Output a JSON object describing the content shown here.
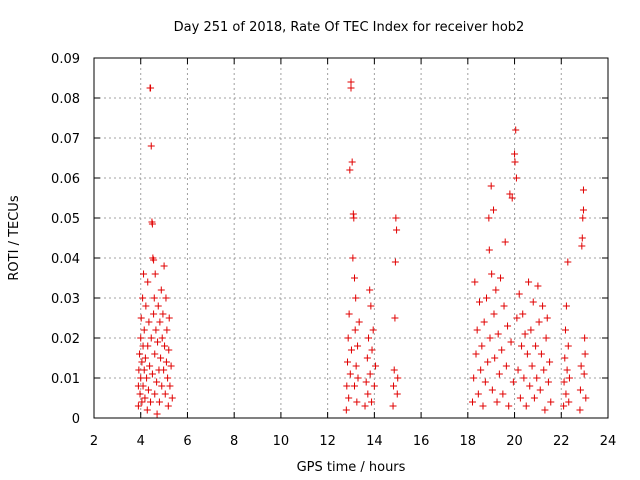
{
  "chart_data": {
    "type": "scatter",
    "title": "Day 251 of 2018, Rate Of TEC Index for receiver hob2",
    "xlabel": "GPS time / hours",
    "ylabel": "ROTI / TECUs",
    "xlim": [
      2,
      24
    ],
    "ylim": [
      0,
      0.09
    ],
    "grid": true,
    "marker": "plus",
    "color": "#e00000",
    "x_ticks": [
      2,
      4,
      6,
      8,
      10,
      12,
      14,
      16,
      18,
      20,
      22,
      24
    ],
    "y_ticks": [
      0,
      0.01,
      0.02,
      0.03,
      0.04,
      0.05,
      0.06,
      0.07,
      0.08,
      0.09
    ],
    "x_tick_labels": [
      "2",
      "4",
      "6",
      "8",
      "10",
      "12",
      "14",
      "16",
      "18",
      "20",
      "22",
      "24"
    ],
    "y_tick_labels": [
      "0",
      "0.01",
      "0.02",
      "0.03",
      "0.04",
      "0.05",
      "0.06",
      "0.07",
      "0.08",
      "0.09"
    ],
    "series": [
      {
        "name": "hob2",
        "points": [
          [
            3.9,
            0.003
          ],
          [
            3.9,
            0.008
          ],
          [
            3.92,
            0.012
          ],
          [
            3.95,
            0.016
          ],
          [
            3.97,
            0.006
          ],
          [
            4.0,
            0.02
          ],
          [
            4.0,
            0.01
          ],
          [
            4.02,
            0.025
          ],
          [
            4.05,
            0.014
          ],
          [
            4.05,
            0.004
          ],
          [
            4.08,
            0.03
          ],
          [
            4.1,
            0.018
          ],
          [
            4.1,
            0.008
          ],
          [
            4.12,
            0.036
          ],
          [
            4.15,
            0.012
          ],
          [
            4.15,
            0.022
          ],
          [
            4.18,
            0.005
          ],
          [
            4.2,
            0.015
          ],
          [
            4.22,
            0.028
          ],
          [
            4.25,
            0.01
          ],
          [
            4.28,
            0.002
          ],
          [
            4.3,
            0.018
          ],
          [
            4.3,
            0.034
          ],
          [
            4.33,
            0.007
          ],
          [
            4.35,
            0.024
          ],
          [
            4.38,
            0.013
          ],
          [
            4.4,
            0.0825
          ],
          [
            4.42,
            0.0825
          ],
          [
            4.42,
            0.004
          ],
          [
            4.45,
            0.068
          ],
          [
            4.45,
            0.02
          ],
          [
            4.48,
            0.049
          ],
          [
            4.5,
            0.0485
          ],
          [
            4.5,
            0.011
          ],
          [
            4.52,
            0.04
          ],
          [
            4.55,
            0.0395
          ],
          [
            4.55,
            0.026
          ],
          [
            4.58,
            0.03
          ],
          [
            4.6,
            0.016
          ],
          [
            4.6,
            0.006
          ],
          [
            4.62,
            0.036
          ],
          [
            4.65,
            0.022
          ],
          [
            4.68,
            0.009
          ],
          [
            4.7,
            0.001
          ],
          [
            4.72,
            0.019
          ],
          [
            4.75,
            0.028
          ],
          [
            4.78,
            0.012
          ],
          [
            4.8,
            0.004
          ],
          [
            4.82,
            0.024
          ],
          [
            4.85,
            0.015
          ],
          [
            4.88,
            0.032
          ],
          [
            4.9,
            0.008
          ],
          [
            4.92,
            0.02
          ],
          [
            4.95,
            0.026
          ],
          [
            4.98,
            0.012
          ],
          [
            5.0,
            0.038
          ],
          [
            5.02,
            0.018
          ],
          [
            5.05,
            0.006
          ],
          [
            5.08,
            0.03
          ],
          [
            5.1,
            0.014
          ],
          [
            5.12,
            0.022
          ],
          [
            5.15,
            0.01
          ],
          [
            5.18,
            0.003
          ],
          [
            5.2,
            0.017
          ],
          [
            5.22,
            0.025
          ],
          [
            5.25,
            0.008
          ],
          [
            5.3,
            0.013
          ],
          [
            5.35,
            0.005
          ],
          [
            12.8,
            0.002
          ],
          [
            12.82,
            0.008
          ],
          [
            12.85,
            0.014
          ],
          [
            12.88,
            0.02
          ],
          [
            12.9,
            0.005
          ],
          [
            12.92,
            0.026
          ],
          [
            12.95,
            0.062
          ],
          [
            12.97,
            0.011
          ],
          [
            13.0,
            0.084
          ],
          [
            13.0,
            0.0825
          ],
          [
            13.02,
            0.017
          ],
          [
            13.05,
            0.064
          ],
          [
            13.08,
            0.04
          ],
          [
            13.1,
            0.051
          ],
          [
            13.12,
            0.05
          ],
          [
            13.15,
            0.035
          ],
          [
            13.15,
            0.008
          ],
          [
            13.18,
            0.022
          ],
          [
            13.2,
            0.03
          ],
          [
            13.22,
            0.013
          ],
          [
            13.25,
            0.004
          ],
          [
            13.28,
            0.018
          ],
          [
            13.3,
            0.01
          ],
          [
            13.35,
            0.024
          ],
          [
            13.6,
            0.003
          ],
          [
            13.65,
            0.009
          ],
          [
            13.7,
            0.015
          ],
          [
            13.72,
            0.006
          ],
          [
            13.75,
            0.02
          ],
          [
            13.8,
            0.032
          ],
          [
            13.82,
            0.011
          ],
          [
            13.85,
            0.028
          ],
          [
            13.88,
            0.004
          ],
          [
            13.9,
            0.017
          ],
          [
            13.95,
            0.022
          ],
          [
            14.0,
            0.008
          ],
          [
            14.05,
            0.013
          ],
          [
            14.8,
            0.003
          ],
          [
            14.82,
            0.008
          ],
          [
            14.85,
            0.012
          ],
          [
            14.88,
            0.025
          ],
          [
            14.9,
            0.039
          ],
          [
            14.92,
            0.05
          ],
          [
            14.95,
            0.047
          ],
          [
            14.98,
            0.006
          ],
          [
            15.0,
            0.01
          ],
          [
            18.2,
            0.004
          ],
          [
            18.25,
            0.01
          ],
          [
            18.3,
            0.034
          ],
          [
            18.35,
            0.016
          ],
          [
            18.4,
            0.022
          ],
          [
            18.45,
            0.006
          ],
          [
            18.5,
            0.029
          ],
          [
            18.55,
            0.012
          ],
          [
            18.6,
            0.018
          ],
          [
            18.65,
            0.003
          ],
          [
            18.7,
            0.024
          ],
          [
            18.75,
            0.009
          ],
          [
            18.8,
            0.03
          ],
          [
            18.85,
            0.014
          ],
          [
            18.9,
            0.05
          ],
          [
            18.92,
            0.042
          ],
          [
            18.95,
            0.02
          ],
          [
            19.0,
            0.058
          ],
          [
            19.02,
            0.036
          ],
          [
            19.05,
            0.007
          ],
          [
            19.1,
            0.052
          ],
          [
            19.12,
            0.026
          ],
          [
            19.15,
            0.015
          ],
          [
            19.2,
            0.032
          ],
          [
            19.25,
            0.004
          ],
          [
            19.3,
            0.021
          ],
          [
            19.35,
            0.011
          ],
          [
            19.4,
            0.035
          ],
          [
            19.45,
            0.017
          ],
          [
            19.5,
            0.006
          ],
          [
            19.55,
            0.028
          ],
          [
            19.6,
            0.044
          ],
          [
            19.65,
            0.013
          ],
          [
            19.7,
            0.023
          ],
          [
            19.75,
            0.003
          ],
          [
            19.8,
            0.056
          ],
          [
            19.85,
            0.019
          ],
          [
            19.9,
            0.055
          ],
          [
            19.95,
            0.009
          ],
          [
            20.0,
            0.066
          ],
          [
            20.02,
            0.064
          ],
          [
            20.05,
            0.072
          ],
          [
            20.08,
            0.06
          ],
          [
            20.1,
            0.025
          ],
          [
            20.15,
            0.012
          ],
          [
            20.2,
            0.031
          ],
          [
            20.25,
            0.005
          ],
          [
            20.3,
            0.018
          ],
          [
            20.35,
            0.026
          ],
          [
            20.4,
            0.01
          ],
          [
            20.45,
            0.021
          ],
          [
            20.5,
            0.003
          ],
          [
            20.55,
            0.016
          ],
          [
            20.6,
            0.034
          ],
          [
            20.65,
            0.008
          ],
          [
            20.7,
            0.022
          ],
          [
            20.75,
            0.013
          ],
          [
            20.8,
            0.029
          ],
          [
            20.85,
            0.005
          ],
          [
            20.9,
            0.018
          ],
          [
            20.95,
            0.01
          ],
          [
            21.0,
            0.033
          ],
          [
            21.05,
            0.024
          ],
          [
            21.1,
            0.007
          ],
          [
            21.15,
            0.016
          ],
          [
            21.2,
            0.028
          ],
          [
            21.25,
            0.012
          ],
          [
            21.3,
            0.002
          ],
          [
            21.35,
            0.02
          ],
          [
            21.4,
            0.025
          ],
          [
            21.45,
            0.009
          ],
          [
            21.5,
            0.014
          ],
          [
            21.55,
            0.004
          ],
          [
            22.1,
            0.003
          ],
          [
            22.12,
            0.009
          ],
          [
            22.15,
            0.015
          ],
          [
            22.18,
            0.022
          ],
          [
            22.2,
            0.006
          ],
          [
            22.22,
            0.028
          ],
          [
            22.25,
            0.012
          ],
          [
            22.28,
            0.039
          ],
          [
            22.3,
            0.018
          ],
          [
            22.32,
            0.004
          ],
          [
            22.35,
            0.01
          ],
          [
            22.8,
            0.002
          ],
          [
            22.82,
            0.007
          ],
          [
            22.85,
            0.013
          ],
          [
            22.88,
            0.043
          ],
          [
            22.9,
            0.045
          ],
          [
            22.92,
            0.05
          ],
          [
            22.95,
            0.052
          ],
          [
            22.95,
            0.057
          ],
          [
            22.98,
            0.011
          ],
          [
            23.0,
            0.02
          ],
          [
            23.02,
            0.016
          ],
          [
            23.05,
            0.005
          ]
        ]
      }
    ]
  }
}
